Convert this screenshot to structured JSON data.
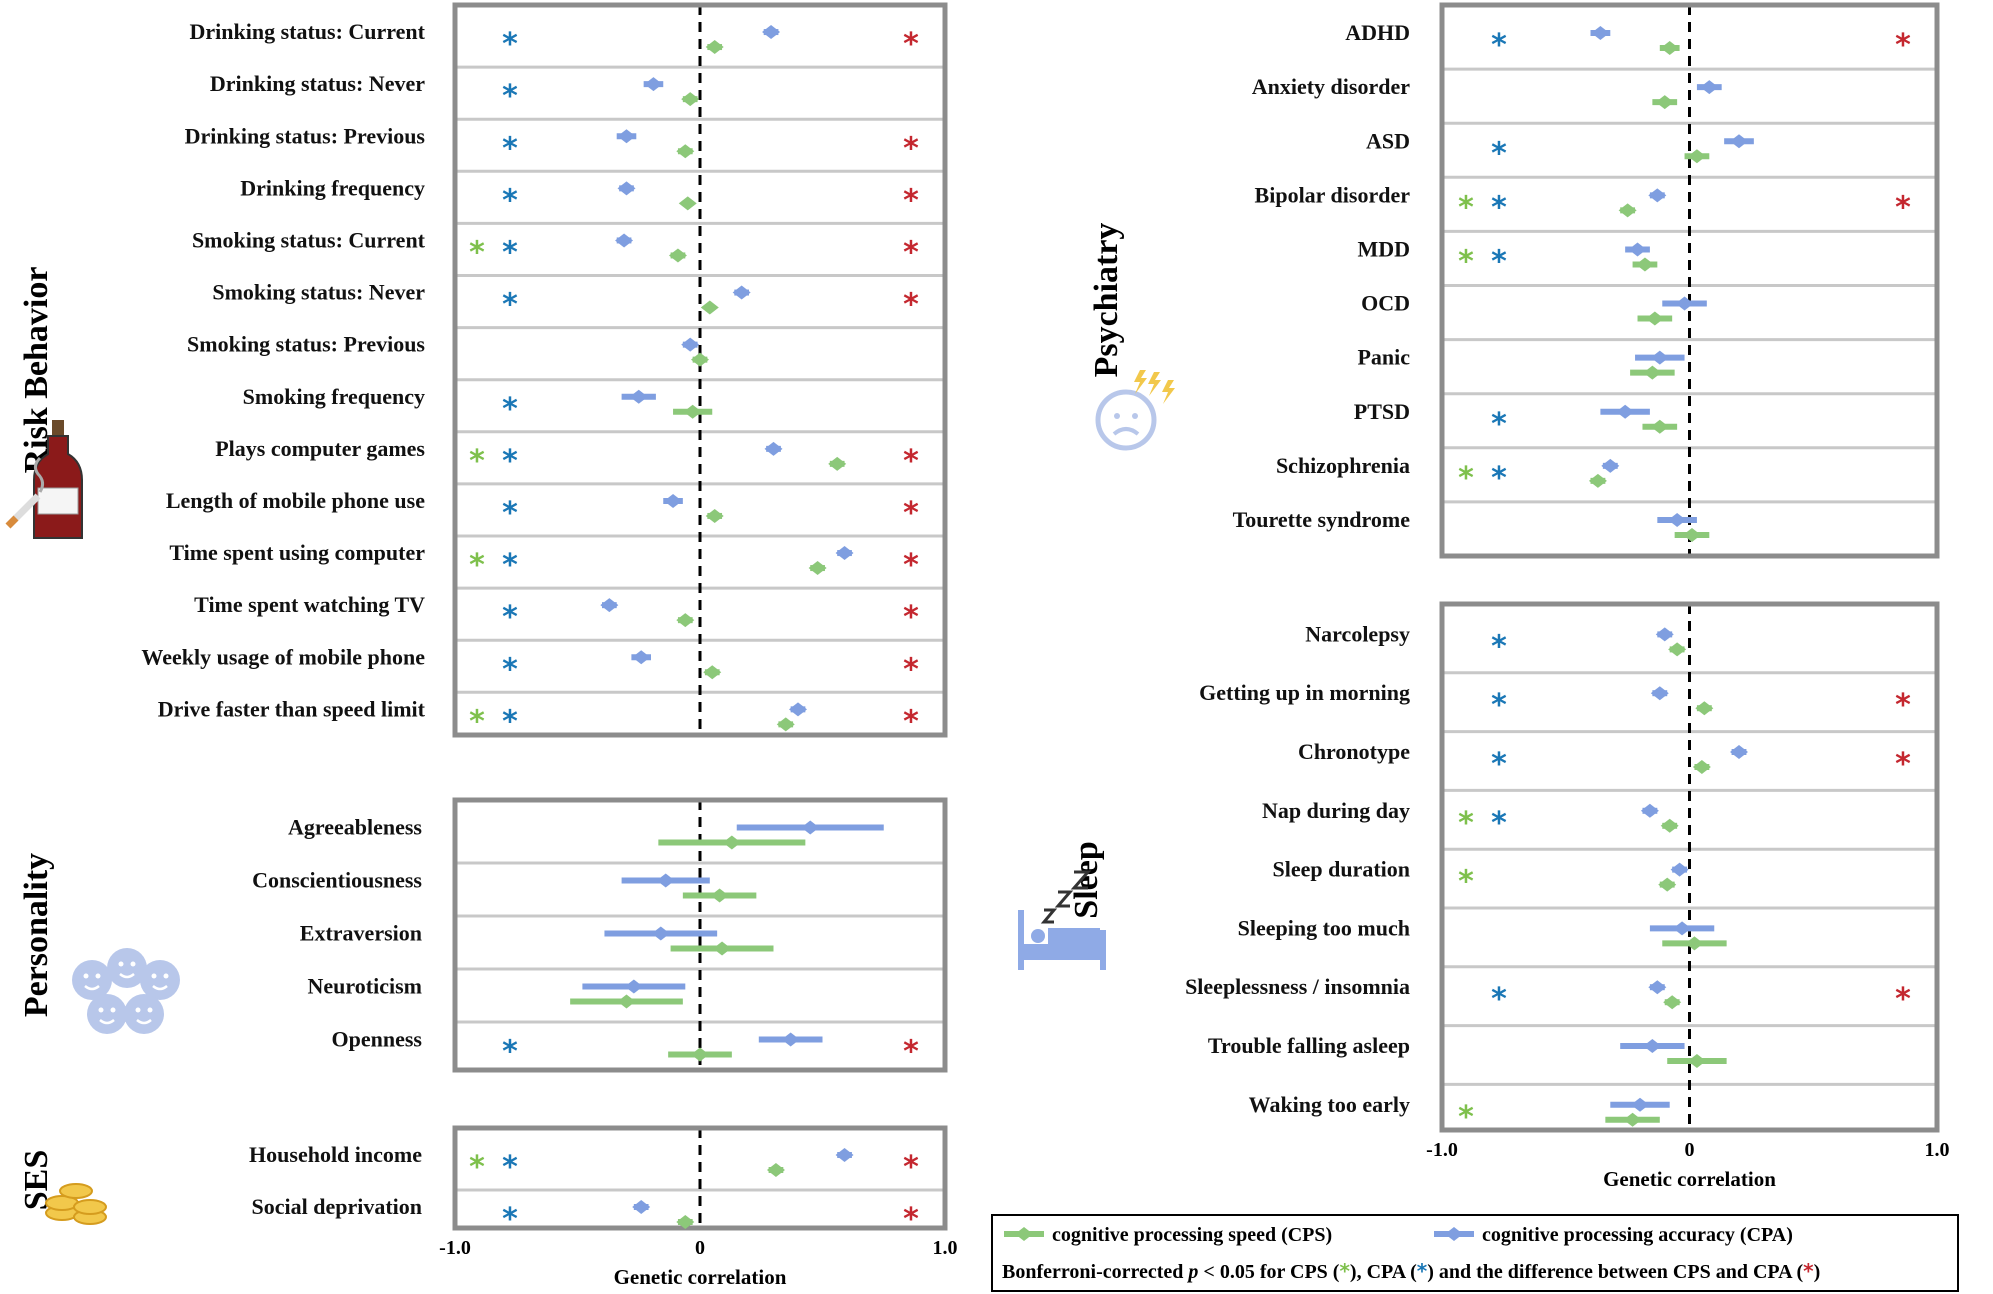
{
  "chart_data": {
    "type": "forest",
    "xlabel": "Genetic correlation",
    "xlim": [
      -1.0,
      1.0
    ],
    "xtick_labels": [
      "-1.0",
      "0",
      "1.0"
    ],
    "colors": {
      "cps": "#8cc879",
      "cpa": "#7f9ee0",
      "star_cps": "#7ec04c",
      "star_cpa": "#1a77b6",
      "star_diff": "#c4272f"
    },
    "legend": {
      "cps": "cognitive processing speed (CPS)",
      "cpa": "cognitive processing accuracy (CPA)",
      "note_prefix": "Bonferroni-corrected ",
      "note_p": "p",
      "note_mid": " < 0.05 for CPS (",
      "note_mid2": "), CPA (",
      "note_mid3": ") and the difference between CPS and CPA (",
      "note_end": ")",
      "star_glyph": "*"
    },
    "panels": [
      {
        "title": "Risk Behavior",
        "icon": "cigarette-bottle-icon",
        "rows": [
          {
            "label": "Drinking status: Current",
            "cps": 0.06,
            "cps_ci": 0.03,
            "cpa": 0.29,
            "cpa_ci": 0.03,
            "sig_cps": false,
            "sig_cpa": true,
            "sig_diff": true
          },
          {
            "label": "Drinking  status: Never",
            "cps": -0.04,
            "cps_ci": 0.03,
            "cpa": -0.19,
            "cpa_ci": 0.04,
            "sig_cps": false,
            "sig_cpa": true,
            "sig_diff": false
          },
          {
            "label": "Drinking status: Previous",
            "cps": -0.06,
            "cps_ci": 0.03,
            "cpa": -0.3,
            "cpa_ci": 0.04,
            "sig_cps": false,
            "sig_cpa": true,
            "sig_diff": true
          },
          {
            "label": "Drinking frequency",
            "cps": -0.05,
            "cps_ci": 0.02,
            "cpa": -0.3,
            "cpa_ci": 0.03,
            "sig_cps": false,
            "sig_cpa": true,
            "sig_diff": true
          },
          {
            "label": "Smoking status: Current",
            "cps": -0.09,
            "cps_ci": 0.03,
            "cpa": -0.31,
            "cpa_ci": 0.03,
            "sig_cps": true,
            "sig_cpa": true,
            "sig_diff": true
          },
          {
            "label": "Smoking status: Never",
            "cps": 0.04,
            "cps_ci": 0.02,
            "cpa": 0.17,
            "cpa_ci": 0.03,
            "sig_cps": false,
            "sig_cpa": true,
            "sig_diff": true
          },
          {
            "label": "Smoking status: Previous",
            "cps": 0.0,
            "cps_ci": 0.03,
            "cpa": -0.04,
            "cpa_ci": 0.03,
            "sig_cps": false,
            "sig_cpa": false,
            "sig_diff": false
          },
          {
            "label": "Smoking frequency",
            "cps": -0.03,
            "cps_ci": 0.08,
            "cpa": -0.25,
            "cpa_ci": 0.07,
            "sig_cps": false,
            "sig_cpa": true,
            "sig_diff": false
          },
          {
            "label": "Plays computer games",
            "cps": 0.56,
            "cps_ci": 0.03,
            "cpa": 0.3,
            "cpa_ci": 0.03,
            "sig_cps": true,
            "sig_cpa": true,
            "sig_diff": true
          },
          {
            "label": "Length of mobile phone use",
            "cps": 0.06,
            "cps_ci": 0.03,
            "cpa": -0.11,
            "cpa_ci": 0.04,
            "sig_cps": false,
            "sig_cpa": true,
            "sig_diff": true
          },
          {
            "label": "Time spent using computer",
            "cps": 0.48,
            "cps_ci": 0.03,
            "cpa": 0.59,
            "cpa_ci": 0.03,
            "sig_cps": true,
            "sig_cpa": true,
            "sig_diff": true
          },
          {
            "label": "Time spent watching TV",
            "cps": -0.06,
            "cps_ci": 0.03,
            "cpa": -0.37,
            "cpa_ci": 0.03,
            "sig_cps": false,
            "sig_cpa": true,
            "sig_diff": true
          },
          {
            "label": "Weekly usage of mobile phone",
            "cps": 0.05,
            "cps_ci": 0.03,
            "cpa": -0.24,
            "cpa_ci": 0.04,
            "sig_cps": false,
            "sig_cpa": true,
            "sig_diff": true
          },
          {
            "label": "Drive faster than speed limit",
            "cps": 0.35,
            "cps_ci": 0.03,
            "cpa": 0.4,
            "cpa_ci": 0.03,
            "sig_cps": true,
            "sig_cpa": true,
            "sig_diff": true
          }
        ]
      },
      {
        "title": "Personality",
        "icon": "faces-icon",
        "rows": [
          {
            "label": "Agreeableness",
            "cps": 0.13,
            "cps_ci": 0.3,
            "cpa": 0.45,
            "cpa_ci": 0.3,
            "sig_cps": false,
            "sig_cpa": false,
            "sig_diff": false
          },
          {
            "label": "Conscientiousness",
            "cps": 0.08,
            "cps_ci": 0.15,
            "cpa": -0.14,
            "cpa_ci": 0.18,
            "sig_cps": false,
            "sig_cpa": false,
            "sig_diff": false
          },
          {
            "label": "Extraversion",
            "cps": 0.09,
            "cps_ci": 0.21,
            "cpa": -0.16,
            "cpa_ci": 0.23,
            "sig_cps": false,
            "sig_cpa": false,
            "sig_diff": false
          },
          {
            "label": "Neuroticism",
            "cps": -0.3,
            "cps_ci": 0.23,
            "cpa": -0.27,
            "cpa_ci": 0.21,
            "sig_cps": false,
            "sig_cpa": false,
            "sig_diff": false
          },
          {
            "label": "Openness",
            "cps": 0.0,
            "cps_ci": 0.13,
            "cpa": 0.37,
            "cpa_ci": 0.13,
            "sig_cps": false,
            "sig_cpa": true,
            "sig_diff": true
          }
        ]
      },
      {
        "title": "SES",
        "icon": "coins-icon",
        "rows": [
          {
            "label": "Household income",
            "cps": 0.31,
            "cps_ci": 0.03,
            "cpa": 0.59,
            "cpa_ci": 0.03,
            "sig_cps": true,
            "sig_cpa": true,
            "sig_diff": true
          },
          {
            "label": "Social deprivation",
            "cps": -0.06,
            "cps_ci": 0.03,
            "cpa": -0.24,
            "cpa_ci": 0.03,
            "sig_cps": false,
            "sig_cpa": true,
            "sig_diff": true
          }
        ]
      },
      {
        "title": "Psychiatry",
        "icon": "anxious-face-icon",
        "rows": [
          {
            "label": "ADHD",
            "cps": -0.08,
            "cps_ci": 0.04,
            "cpa": -0.36,
            "cpa_ci": 0.04,
            "sig_cps": false,
            "sig_cpa": true,
            "sig_diff": true
          },
          {
            "label": "Anxiety disorder",
            "cps": -0.1,
            "cps_ci": 0.05,
            "cpa": 0.08,
            "cpa_ci": 0.05,
            "sig_cps": false,
            "sig_cpa": false,
            "sig_diff": false
          },
          {
            "label": "ASD",
            "cps": 0.03,
            "cps_ci": 0.05,
            "cpa": 0.2,
            "cpa_ci": 0.06,
            "sig_cps": false,
            "sig_cpa": true,
            "sig_diff": false
          },
          {
            "label": "Bipolar disorder",
            "cps": -0.25,
            "cps_ci": 0.03,
            "cpa": -0.13,
            "cpa_ci": 0.03,
            "sig_cps": true,
            "sig_cpa": true,
            "sig_diff": true
          },
          {
            "label": "MDD",
            "cps": -0.18,
            "cps_ci": 0.05,
            "cpa": -0.21,
            "cpa_ci": 0.05,
            "sig_cps": true,
            "sig_cpa": true,
            "sig_diff": false
          },
          {
            "label": "OCD",
            "cps": -0.14,
            "cps_ci": 0.07,
            "cpa": -0.02,
            "cpa_ci": 0.09,
            "sig_cps": false,
            "sig_cpa": false,
            "sig_diff": false
          },
          {
            "label": "Panic",
            "cps": -0.15,
            "cps_ci": 0.09,
            "cpa": -0.12,
            "cpa_ci": 0.1,
            "sig_cps": false,
            "sig_cpa": false,
            "sig_diff": false
          },
          {
            "label": "PTSD",
            "cps": -0.12,
            "cps_ci": 0.07,
            "cpa": -0.26,
            "cpa_ci": 0.1,
            "sig_cps": false,
            "sig_cpa": true,
            "sig_diff": false
          },
          {
            "label": "Schizophrenia",
            "cps": -0.37,
            "cps_ci": 0.03,
            "cpa": -0.32,
            "cpa_ci": 0.03,
            "sig_cps": true,
            "sig_cpa": true,
            "sig_diff": false
          },
          {
            "label": "Tourette syndrome",
            "cps": 0.01,
            "cps_ci": 0.07,
            "cpa": -0.05,
            "cpa_ci": 0.08,
            "sig_cps": false,
            "sig_cpa": false,
            "sig_diff": false
          }
        ]
      },
      {
        "title": "Sleep",
        "icon": "sleeping-bed-icon",
        "rows": [
          {
            "label": "Narcolepsy",
            "cps": -0.05,
            "cps_ci": 0.03,
            "cpa": -0.1,
            "cpa_ci": 0.03,
            "sig_cps": false,
            "sig_cpa": true,
            "sig_diff": false
          },
          {
            "label": "Getting up in morning",
            "cps": 0.06,
            "cps_ci": 0.03,
            "cpa": -0.12,
            "cpa_ci": 0.03,
            "sig_cps": false,
            "sig_cpa": true,
            "sig_diff": true
          },
          {
            "label": "Chronotype",
            "cps": 0.05,
            "cps_ci": 0.03,
            "cpa": 0.2,
            "cpa_ci": 0.03,
            "sig_cps": false,
            "sig_cpa": true,
            "sig_diff": true
          },
          {
            "label": "Nap during day",
            "cps": -0.08,
            "cps_ci": 0.03,
            "cpa": -0.16,
            "cpa_ci": 0.03,
            "sig_cps": true,
            "sig_cpa": true,
            "sig_diff": false
          },
          {
            "label": "Sleep duration",
            "cps": -0.09,
            "cps_ci": 0.03,
            "cpa": -0.04,
            "cpa_ci": 0.03,
            "sig_cps": true,
            "sig_cpa": false,
            "sig_diff": false
          },
          {
            "label": "Sleeping too much",
            "cps": 0.02,
            "cps_ci": 0.13,
            "cpa": -0.03,
            "cpa_ci": 0.13,
            "sig_cps": false,
            "sig_cpa": false,
            "sig_diff": false
          },
          {
            "label": "Sleeplessness / insomnia",
            "cps": -0.07,
            "cps_ci": 0.03,
            "cpa": -0.13,
            "cpa_ci": 0.03,
            "sig_cps": false,
            "sig_cpa": true,
            "sig_diff": true
          },
          {
            "label": "Trouble falling asleep",
            "cps": 0.03,
            "cps_ci": 0.12,
            "cpa": -0.15,
            "cpa_ci": 0.13,
            "sig_cps": false,
            "sig_cpa": false,
            "sig_diff": false
          },
          {
            "label": "Waking too early",
            "cps": -0.23,
            "cps_ci": 0.11,
            "cpa": -0.2,
            "cpa_ci": 0.12,
            "sig_cps": true,
            "sig_cpa": false,
            "sig_diff": false
          }
        ]
      }
    ]
  }
}
